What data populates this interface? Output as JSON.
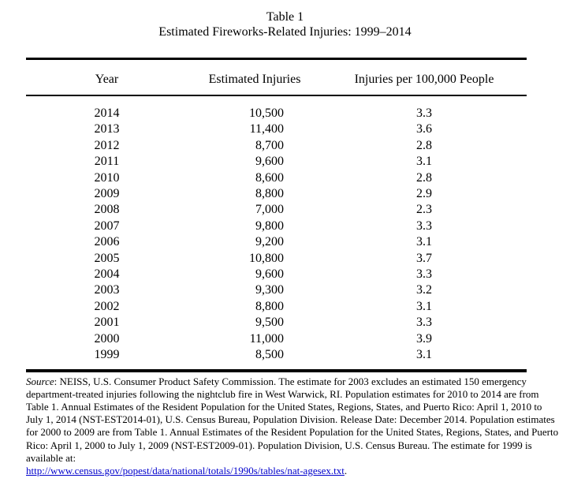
{
  "page": {
    "title_line1": "Table 1",
    "title_line2": "Estimated Fireworks-Related Injuries: 1999–2014"
  },
  "table": {
    "columns": [
      "Year",
      "Estimated Injuries",
      "Injuries per 100,000 People"
    ],
    "rows": [
      {
        "year": "2014",
        "injuries": "10,500",
        "rate": "3.3"
      },
      {
        "year": "2013",
        "injuries": "11,400",
        "rate": "3.6"
      },
      {
        "year": "2012",
        "injuries": "8,700",
        "rate": "2.8"
      },
      {
        "year": "2011",
        "injuries": "9,600",
        "rate": "3.1"
      },
      {
        "year": "2010",
        "injuries": "8,600",
        "rate": "2.8"
      },
      {
        "year": "2009",
        "injuries": "8,800",
        "rate": "2.9"
      },
      {
        "year": "2008",
        "injuries": "7,000",
        "rate": "2.3"
      },
      {
        "year": "2007",
        "injuries": "9,800",
        "rate": "3.3"
      },
      {
        "year": "2006",
        "injuries": "9,200",
        "rate": "3.1"
      },
      {
        "year": "2005",
        "injuries": "10,800",
        "rate": "3.7"
      },
      {
        "year": "2004",
        "injuries": "9,600",
        "rate": "3.3"
      },
      {
        "year": "2003",
        "injuries": "9,300",
        "rate": "3.2"
      },
      {
        "year": "2002",
        "injuries": "8,800",
        "rate": "3.1"
      },
      {
        "year": "2001",
        "injuries": "9,500",
        "rate": "3.3"
      },
      {
        "year": "2000",
        "injuries": "11,000",
        "rate": "3.9"
      },
      {
        "year": "1999",
        "injuries": "8,500",
        "rate": "3.1"
      }
    ]
  },
  "note": {
    "source_label": "Source",
    "text": ":  NEISS, U.S. Consumer Product Safety Commission. The estimate for 2003 excludes an estimated 150 emergency department-treated injuries following the nightclub fire in West Warwick, RI. Population estimates for 2010 to 2014 are from Table 1. Annual Estimates of the Resident Population for the United States, Regions, States, and Puerto Rico: April 1, 2010 to July 1, 2014 (NST-EST2014-01), U.S. Census Bureau, Population Division. Release Date: December 2014. Population estimates for 2000 to 2009 are from Table 1. Annual Estimates of the Resident Population for the United States, Regions, States, and Puerto Rico: April 1, 2000 to July 1, 2009 (NST-EST2009-01). Population Division, U.S. Census Bureau.  The estimate for 1999 is available at:",
    "link": "http://www.census.gov/popest/data/national/totals/1990s/tables/nat-agesex.txt",
    "link_suffix": "."
  },
  "colors": {
    "text": "#000000",
    "rule": "#000000",
    "link": "#0000cc"
  }
}
